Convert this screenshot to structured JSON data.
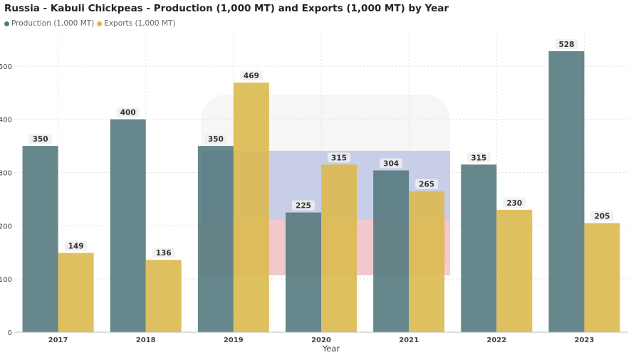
{
  "chart_data": {
    "type": "bar",
    "title": "Russia - Kabuli Chickpeas - Production (1,000 MT) and Exports (1,000 MT) by Year",
    "xlabel": "Year",
    "ylabel": "",
    "categories": [
      "2017",
      "2018",
      "2019",
      "2020",
      "2021",
      "2022",
      "2023"
    ],
    "series": [
      {
        "name": "Production (1,000 MT)",
        "values": [
          350,
          400,
          350,
          225,
          304,
          315,
          528
        ],
        "color": "#557a7f"
      },
      {
        "name": "Exports (1,000 MT)",
        "values": [
          149,
          136,
          469,
          315,
          265,
          230,
          205
        ],
        "color": "#dbb94f"
      }
    ],
    "ylim": [
      0,
      560
    ],
    "yticks": [
      0,
      100,
      200,
      300,
      400,
      500
    ],
    "grid": true,
    "legend": "top-left"
  }
}
